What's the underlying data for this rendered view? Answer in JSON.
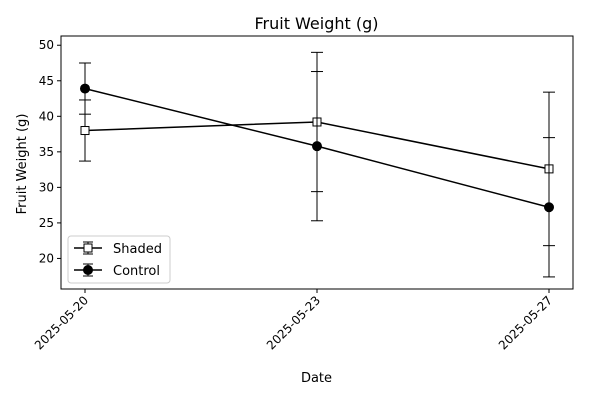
{
  "chart_data": {
    "type": "line",
    "title": "Fruit Weight (g)",
    "xlabel": "Date",
    "ylabel": "Fruit Weight (g)",
    "x": [
      "2025-05-20",
      "2025-05-23",
      "2025-05-27"
    ],
    "ylim": [
      15.7,
      51.3
    ],
    "yticks": [
      20,
      25,
      30,
      35,
      40,
      45,
      50
    ],
    "grid": false,
    "legend_position": "lower-left",
    "series": [
      {
        "name": "Shaded",
        "marker": "square-open",
        "values": [
          38.0,
          39.2,
          32.6
        ],
        "error_low": [
          33.7,
          29.4,
          21.8
        ],
        "error_high": [
          42.3,
          49.0,
          43.4
        ],
        "color": "#000000"
      },
      {
        "name": "Control",
        "marker": "circle-filled",
        "values": [
          43.9,
          35.8,
          27.2
        ],
        "error_low": [
          40.3,
          25.3,
          17.4
        ],
        "error_high": [
          47.5,
          46.3,
          37.0
        ],
        "color": "#000000"
      }
    ]
  }
}
